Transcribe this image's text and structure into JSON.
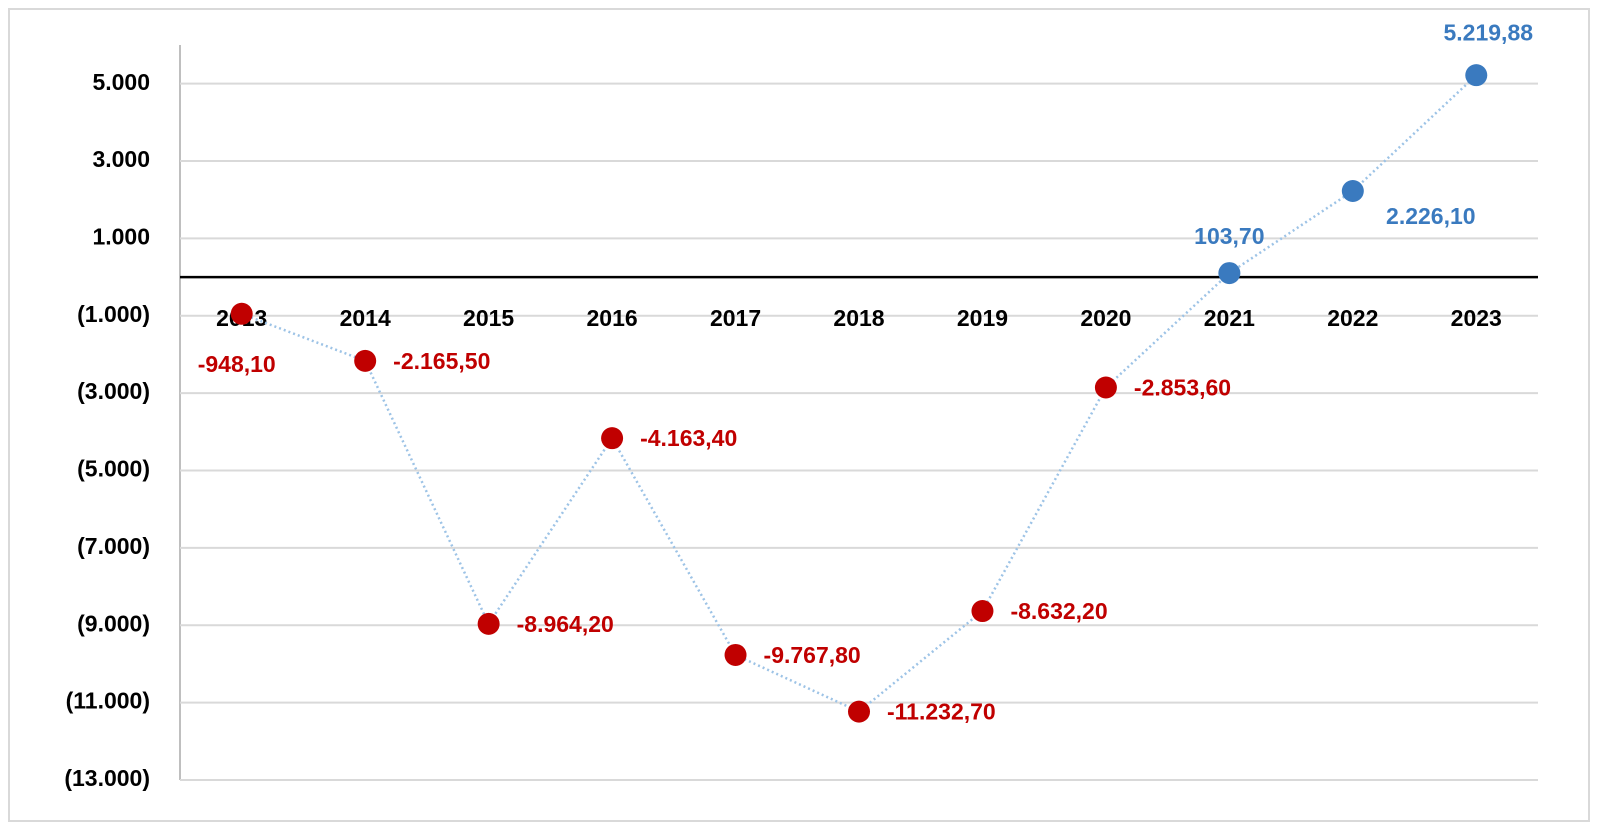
{
  "chart_data": {
    "type": "line",
    "categories": [
      "2013",
      "2014",
      "2015",
      "2016",
      "2017",
      "2018",
      "2019",
      "2020",
      "2021",
      "2022",
      "2023"
    ],
    "values": [
      -948.1,
      -2165.5,
      -8964.2,
      -4163.4,
      -9767.8,
      -11232.7,
      -8632.2,
      -2853.6,
      103.7,
      2226.1,
      5219.88
    ],
    "value_labels": [
      "-948,10",
      "-2.165,50",
      "-8.964,20",
      "-4.163,40",
      "-9.767,80",
      "-11.232,70",
      "-8.632,20",
      "-2.853,60",
      "103,70",
      "2.226,10",
      "5.219,88"
    ],
    "color": "#9dc3e6",
    "negative_color": "#c00000",
    "positive_color": "#3a7abf",
    "ylim": [
      -13000,
      6000
    ],
    "yticks": [
      {
        "value": 5000,
        "label": "5.000"
      },
      {
        "value": 3000,
        "label": "3.000"
      },
      {
        "value": 1000,
        "label": "1.000"
      },
      {
        "value": -1000,
        "label": "(1.000)"
      },
      {
        "value": -3000,
        "label": "(3.000)"
      },
      {
        "value": -5000,
        "label": "(5.000)"
      },
      {
        "value": -7000,
        "label": "(7.000)"
      },
      {
        "value": -9000,
        "label": "(9.000)"
      },
      {
        "value": -11000,
        "label": "(11.000)"
      },
      {
        "value": -13000,
        "label": "(13.000)"
      }
    ],
    "grid": true
  }
}
